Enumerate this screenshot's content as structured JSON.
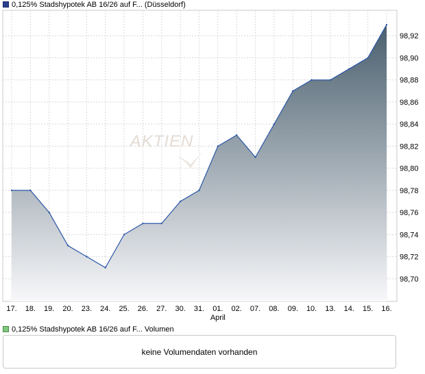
{
  "legend": {
    "price_label": "0,125% Stadshypotek AB 16/26 auf F... (Düsseldorf)",
    "price_color": "#2a3f8f",
    "volume_label": "0,125% Stadshypotek AB 16/26 auf F... Volumen",
    "volume_color": "#7ec87e"
  },
  "volume_panel": {
    "message": "keine Volumendaten vorhanden"
  },
  "chart_data": {
    "type": "area",
    "categories": [
      "17.",
      "18.",
      "19.",
      "20.",
      "23.",
      "24.",
      "25.",
      "26.",
      "27.",
      "30.",
      "31.",
      "01.",
      "02.",
      "07.",
      "08.",
      "09.",
      "10.",
      "13.",
      "14.",
      "15.",
      "16."
    ],
    "month_label": {
      "at": "01.",
      "text": "April"
    },
    "series": [
      {
        "name": "0,125% Stadshypotek AB 16/26 auf F... (Düsseldorf)",
        "values": [
          98.78,
          98.78,
          98.76,
          98.73,
          98.72,
          98.71,
          98.74,
          98.75,
          98.75,
          98.77,
          98.78,
          98.82,
          98.83,
          98.81,
          98.84,
          98.87,
          98.88,
          98.88,
          98.89,
          98.9,
          98.93
        ]
      }
    ],
    "yticks": [
      "98,70",
      "98,72",
      "98,74",
      "98,76",
      "98,78",
      "98,80",
      "98,82",
      "98,84",
      "98,86",
      "98,88",
      "98,90",
      "98,92"
    ],
    "ylim": [
      98.69,
      98.935
    ],
    "grid": true,
    "line_color": "#2a56a6",
    "fill_top_color": "#4a5f6e",
    "fill_bottom_color": "#f8f8fa",
    "watermark": "AKTIEN"
  }
}
